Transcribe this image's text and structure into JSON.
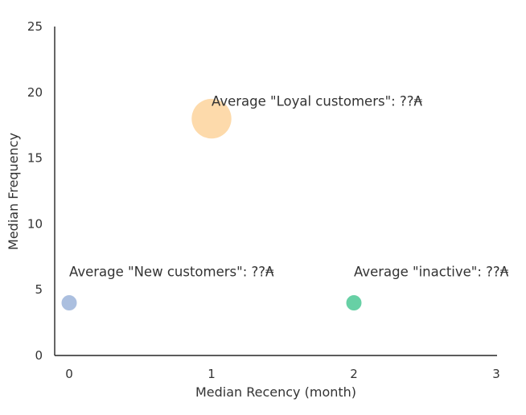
{
  "chart_data": {
    "type": "scatter",
    "title": "",
    "xlabel": "Median Recency (month)",
    "ylabel": "Median Frequency",
    "xlim": [
      -0.1,
      3
    ],
    "ylim": [
      0,
      25
    ],
    "xticks": [
      "0",
      "1",
      "2",
      "3"
    ],
    "yticks": [
      "0",
      "5",
      "10",
      "15",
      "20",
      "25"
    ],
    "grid": false,
    "legend": "none",
    "points": [
      {
        "x": 0,
        "y": 4,
        "size_rel": 1.0,
        "color": "#a7bcdd",
        "label": "Average \"New customers\": ??₳"
      },
      {
        "x": 1,
        "y": 18,
        "size_rel": 2.6,
        "color": "#fdd8a6",
        "label": "Average \"Loyal customers\": ??₳"
      },
      {
        "x": 2,
        "y": 4,
        "size_rel": 1.0,
        "color": "#5fcda0",
        "label": "Average \"inactive\": ??₳"
      }
    ]
  }
}
